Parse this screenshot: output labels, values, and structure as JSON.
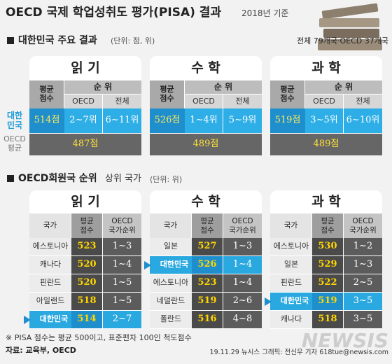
{
  "header": {
    "title": "OECD 국제 학업성취도 평가(PISA) 결과",
    "subtitle": "2018년 기준"
  },
  "summary": {
    "heading": "대한민국 주요 결과",
    "unit": "(단위: 점, 위)",
    "note": "전체 79개국·OECD 37개국",
    "row_labels": [
      "대한\n민국",
      "OECD\n평균"
    ],
    "columns": {
      "score": "평균\n점수",
      "rank": "순 위",
      "oecd": "OECD",
      "all": "전체"
    },
    "panels": [
      {
        "subject": "읽 기",
        "score": "514점",
        "oecd_rank": "2~7위",
        "all_rank": "6~11위",
        "oecd_avg": "487점"
      },
      {
        "subject": "수 학",
        "score": "526점",
        "oecd_rank": "1~4위",
        "all_rank": "5~9위",
        "oecd_avg": "489점"
      },
      {
        "subject": "과 학",
        "score": "519점",
        "oecd_rank": "3~5위",
        "all_rank": "6~10위",
        "oecd_avg": "489점"
      }
    ]
  },
  "rankings": {
    "heading": "OECD회원국 순위",
    "heading2": "상위 국가",
    "unit": "(단위: 위)",
    "columns": [
      "국가",
      "평균\n점수",
      "OECD\n국가순위"
    ],
    "panels": [
      {
        "subject": "읽 기",
        "rows": [
          {
            "country": "에스토니아",
            "score": 523,
            "rank": "1~3",
            "highlight": false
          },
          {
            "country": "캐나다",
            "score": 520,
            "rank": "1~4",
            "highlight": false
          },
          {
            "country": "핀란드",
            "score": 520,
            "rank": "1~5",
            "highlight": false
          },
          {
            "country": "아일랜드",
            "score": 518,
            "rank": "1~5",
            "highlight": false
          },
          {
            "country": "대한민국",
            "score": 514,
            "rank": "2~7",
            "highlight": true
          }
        ]
      },
      {
        "subject": "수 학",
        "rows": [
          {
            "country": "일본",
            "score": 527,
            "rank": "1~3",
            "highlight": false
          },
          {
            "country": "대한민국",
            "score": 526,
            "rank": "1~4",
            "highlight": true
          },
          {
            "country": "에스토니아",
            "score": 523,
            "rank": "1~4",
            "highlight": false
          },
          {
            "country": "네덜란드",
            "score": 519,
            "rank": "2~6",
            "highlight": false
          },
          {
            "country": "폴란드",
            "score": 516,
            "rank": "4~8",
            "highlight": false
          }
        ]
      },
      {
        "subject": "과 학",
        "rows": [
          {
            "country": "에스토니아",
            "score": 530,
            "rank": "1~2",
            "highlight": false
          },
          {
            "country": "일본",
            "score": 529,
            "rank": "1~3",
            "highlight": false
          },
          {
            "country": "핀란드",
            "score": 522,
            "rank": "2~5",
            "highlight": false
          },
          {
            "country": "대한민국",
            "score": 519,
            "rank": "3~5",
            "highlight": true
          },
          {
            "country": "캐나다",
            "score": 518,
            "rank": "3~5",
            "highlight": false
          }
        ]
      }
    ]
  },
  "footer": {
    "note": "※ PISA 점수는 평균 500이고, 표준편차 100인 척도점수",
    "source": "자료: 교육부, OECD",
    "credit": "19.11.29 뉴시스 그래픽: 전신우 기자 618tue@newsis.com",
    "watermark": "NEWSIS"
  }
}
